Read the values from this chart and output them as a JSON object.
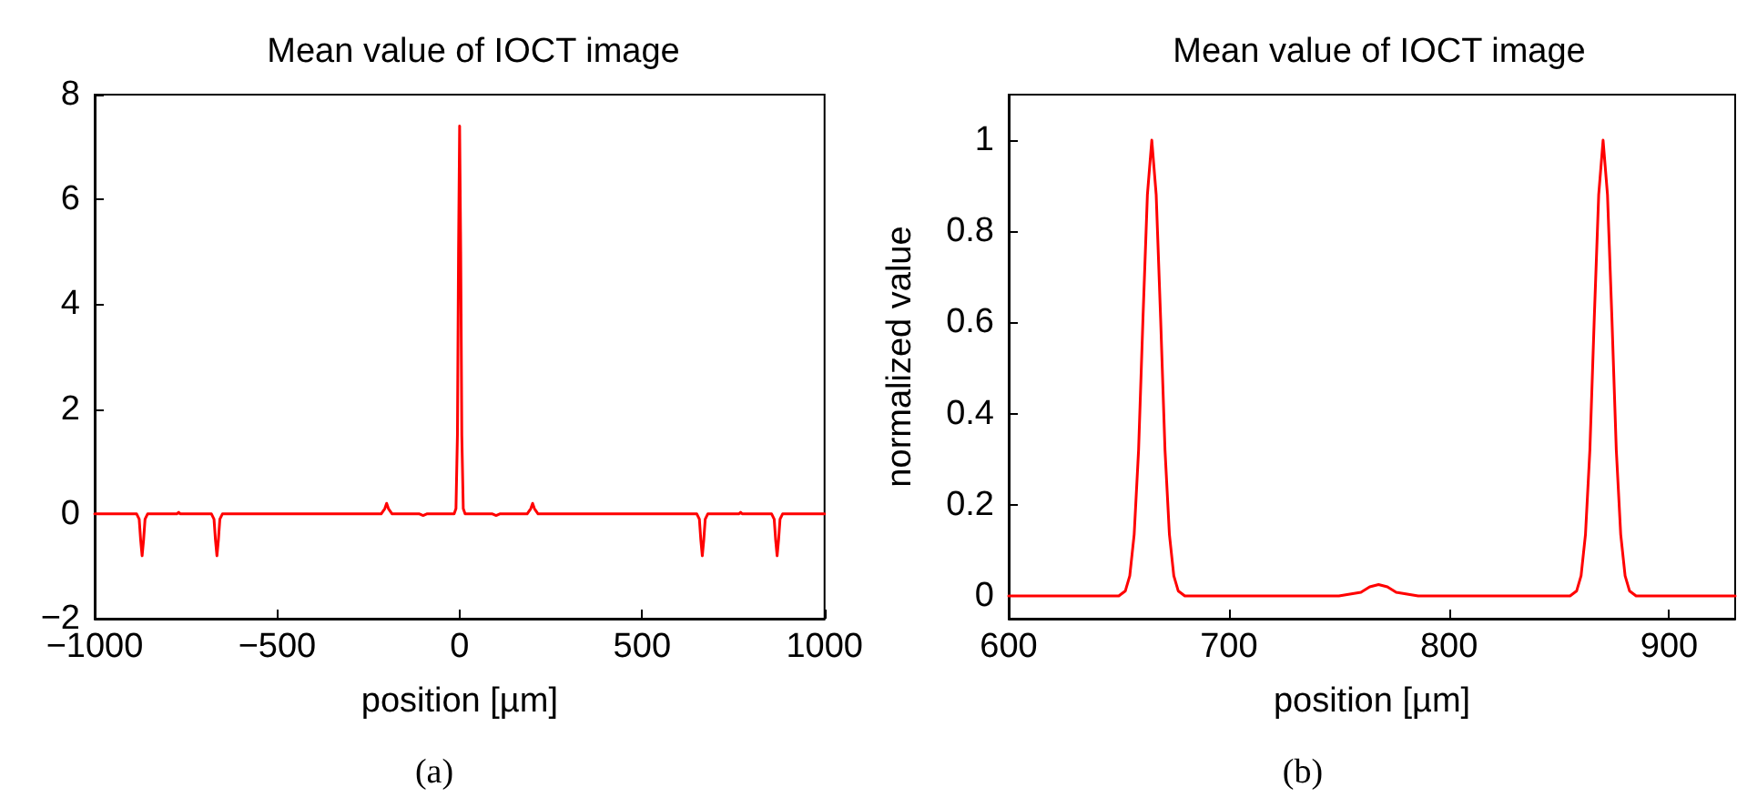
{
  "chart_data": [
    {
      "type": "line",
      "title": "Mean value of IOCT image",
      "xlabel": "position [µm]",
      "annotations": [
        "(a)"
      ],
      "xlim": [
        -1000,
        1000
      ],
      "xticks": [
        -1000,
        -500,
        0,
        500,
        1000
      ],
      "ylim": [
        -2,
        8
      ],
      "yticks": [
        -2,
        0,
        2,
        4,
        6,
        8
      ],
      "grid": false,
      "marker": "none",
      "line_style": "solid",
      "series": [
        {
          "color": "#ff0000",
          "x": [
            -1000,
            -885,
            -878,
            -874,
            -870,
            -866,
            -862,
            -855,
            -775,
            -770,
            -765,
            -680,
            -673,
            -669,
            -665,
            -661,
            -657,
            -650,
            -215,
            -205,
            -200,
            -195,
            -185,
            -110,
            -100,
            -90,
            -15,
            -10,
            -6,
            -3,
            0,
            3,
            6,
            10,
            15,
            90,
            100,
            110,
            185,
            195,
            200,
            205,
            215,
            650,
            657,
            661,
            665,
            669,
            673,
            680,
            765,
            770,
            775,
            855,
            862,
            866,
            870,
            874,
            878,
            885,
            1000
          ],
          "values": [
            0,
            0,
            -0.1,
            -0.5,
            -0.8,
            -0.5,
            -0.1,
            0,
            0,
            0.03,
            0,
            0,
            -0.1,
            -0.5,
            -0.8,
            -0.5,
            -0.1,
            0,
            0,
            0.1,
            0.2,
            0.1,
            0,
            0,
            -0.03,
            0,
            0,
            0.1,
            1.5,
            5,
            7.4,
            5,
            1.5,
            0.1,
            0,
            0,
            -0.03,
            0,
            0,
            0.1,
            0.2,
            0.1,
            0,
            0,
            -0.1,
            -0.5,
            -0.8,
            -0.5,
            -0.1,
            0,
            0,
            0.03,
            0,
            0,
            -0.1,
            -0.5,
            -0.8,
            -0.5,
            -0.1,
            0,
            0
          ]
        }
      ]
    },
    {
      "type": "line",
      "title": "Mean value of IOCT image",
      "xlabel": "position [µm]",
      "ylabel": "normalized value",
      "annotations": [
        "(b)"
      ],
      "xlim": [
        600,
        930
      ],
      "xticks": [
        600,
        700,
        800,
        900
      ],
      "ylim": [
        -0.05,
        1.1
      ],
      "yticks": [
        0,
        0.2,
        0.4,
        0.6,
        0.8,
        1
      ],
      "grid": false,
      "marker": "none",
      "line_style": "solid",
      "series": [
        {
          "color": "#ff0000",
          "x": [
            600,
            650,
            653,
            655,
            657,
            659,
            661,
            663,
            665,
            667,
            669,
            671,
            673,
            675,
            677,
            680,
            750,
            760,
            764,
            768,
            772,
            776,
            786,
            855,
            858,
            860,
            862,
            864,
            866,
            868,
            870,
            872,
            874,
            876,
            878,
            880,
            882,
            885,
            930
          ],
          "values": [
            0,
            0,
            0.011,
            0.044,
            0.135,
            0.32,
            0.61,
            0.88,
            1,
            0.88,
            0.61,
            0.32,
            0.135,
            0.044,
            0.011,
            0,
            0,
            0.008,
            0.02,
            0.025,
            0.02,
            0.008,
            0,
            0,
            0.011,
            0.044,
            0.135,
            0.32,
            0.61,
            0.88,
            1,
            0.88,
            0.61,
            0.32,
            0.135,
            0.044,
            0.011,
            0,
            0
          ]
        }
      ]
    }
  ]
}
